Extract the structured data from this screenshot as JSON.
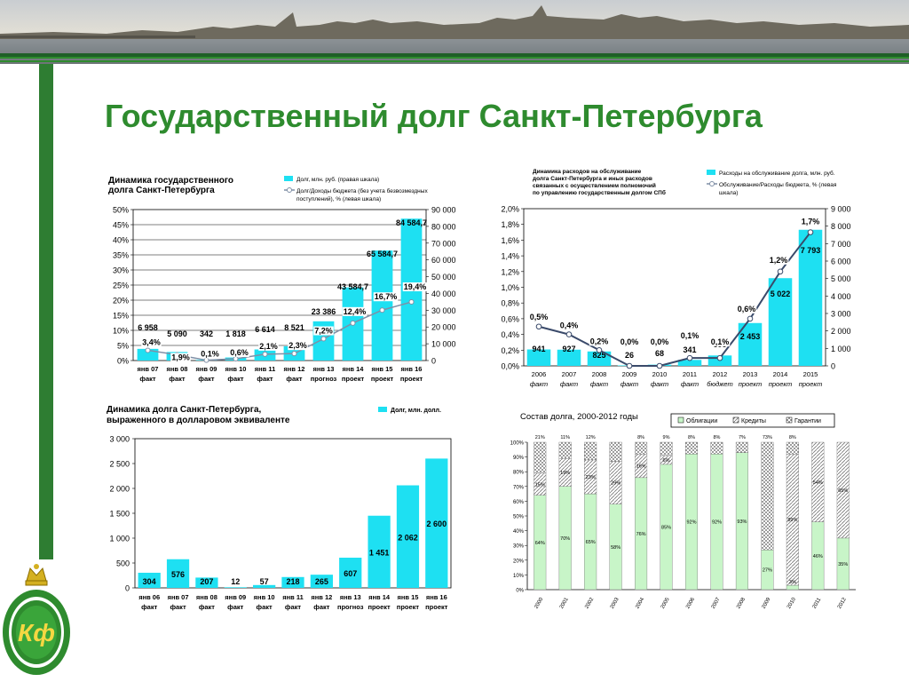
{
  "slide": {
    "title": "Государственный долг Санкт-Петербурга"
  },
  "colors": {
    "bar": "#1ee0f2",
    "line": "#7f8fa6",
    "accent_green": "#2e8b2e",
    "sidebar_green": "#2e7d32",
    "bonds": "#c8f5c8",
    "credits": "#d9d9d9",
    "guarantees": "#f0f0f0"
  },
  "logo": {
    "letters": "Кф",
    "icon": "crown-laurel-emblem-icon"
  },
  "chart_data": [
    {
      "id": "chart1",
      "type": "bar",
      "title_lines": [
        "Динамика государственного",
        "долга Санкт-Петербурга"
      ],
      "legend": [
        {
          "label": "Долг, млн. руб. (правая шкала)"
        },
        {
          "label_lines": [
            "Долг/Доходы бюджета (без учета безвозмездных",
            "поступлений),              % (левая шкала)"
          ]
        }
      ],
      "categories": [
        [
          "янв 07",
          "факт"
        ],
        [
          "янв 08",
          "факт"
        ],
        [
          "янв 09",
          "факт"
        ],
        [
          "янв 10",
          "факт"
        ],
        [
          "янв 11",
          "факт"
        ],
        [
          "янв 12",
          "факт"
        ],
        [
          "янв 13",
          "прогноз"
        ],
        [
          "янв 14",
          "проект"
        ],
        [
          "янв 15",
          "проект"
        ],
        [
          "янв 16",
          "проект"
        ]
      ],
      "series": [
        {
          "name": "Долг, млн. руб.",
          "type": "bar",
          "axis": "right",
          "values": [
            6958,
            5090,
            342,
            1818,
            6614,
            8521,
            23386,
            43584.7,
            65584.7,
            84584.7
          ],
          "labels": [
            "6 958",
            "5 090",
            "342",
            "1 818",
            "6 614",
            "8 521",
            "23 386",
            "43 584,7",
            "65 584,7",
            "84 584,7"
          ]
        },
        {
          "name": "Долг/Доходы бюджета, %",
          "type": "line",
          "axis": "left",
          "values": [
            3.4,
            1.9,
            0.1,
            0.6,
            2.1,
            2.3,
            7.2,
            12.4,
            16.7,
            19.4
          ],
          "labels": [
            "3,4%",
            "1,9%",
            "0,1%",
            "0,6%",
            "2,1%",
            "2,3%",
            "7,2%",
            "12,4%",
            "16,7%",
            "19,4%"
          ]
        }
      ],
      "y_left": {
        "min": 0,
        "max": 50,
        "ticks": [
          "0%",
          "5%",
          "10%",
          "15%",
          "20%",
          "25%",
          "30%",
          "35%",
          "40%",
          "45%",
          "50%"
        ]
      },
      "y_right": {
        "min": 0,
        "max": 90000,
        "ticks": [
          "0",
          "10 000",
          "20 000",
          "30 000",
          "40 000",
          "50 000",
          "60 000",
          "70 000",
          "80 000",
          "90 000"
        ]
      },
      "grid": true
    },
    {
      "id": "chart2",
      "type": "bar",
      "title_lines": [
        "Динамика расходов на обслуживание",
        "долга Санкт-Петербурга и иных расходов",
        "связанных с осуществлением полномочий",
        "по управлению государственным долгом СПб"
      ],
      "legend": [
        {
          "label": "Расходы на обслуживание долга, млн. руб."
        },
        {
          "label_lines": [
            "Обслуживание/Расходы бюджета, % (левая",
            "шкала)"
          ]
        }
      ],
      "categories": [
        [
          "2006",
          "факт"
        ],
        [
          "2007",
          "факт"
        ],
        [
          "2008",
          "факт"
        ],
        [
          "2009",
          "факт"
        ],
        [
          "2010",
          "факт"
        ],
        [
          "2011",
          "факт"
        ],
        [
          "2012",
          "бюджет"
        ],
        [
          "2013",
          "проект"
        ],
        [
          "2014",
          "проект"
        ],
        [
          "2015",
          "проект"
        ]
      ],
      "series": [
        {
          "name": "Расходы на обслуживание долга, млн. руб.",
          "type": "bar",
          "axis": "right",
          "values": [
            941,
            927,
            825,
            26,
            68,
            341,
            595,
            2453,
            5022,
            7793
          ],
          "labels": [
            "941",
            "927",
            "825",
            "26",
            "68",
            "341",
            "595",
            "2 453",
            "5 022",
            "7 793"
          ]
        },
        {
          "name": "Обслуживание/Расходы бюджета, %",
          "type": "line",
          "axis": "left",
          "values": [
            0.5,
            0.4,
            0.2,
            0.0,
            0.0,
            0.1,
            0.1,
            0.6,
            1.2,
            1.7
          ],
          "labels": [
            "0,5%",
            "0,4%",
            "0,2%",
            "0,0%",
            "0,0%",
            "0,1%",
            "0,1%",
            "0,6%",
            "1,2%",
            "1,7%"
          ]
        }
      ],
      "y_left": {
        "min": 0,
        "max": 2.0,
        "ticks": [
          "0,0%",
          "0,2%",
          "0,4%",
          "0,6%",
          "0,8%",
          "1,0%",
          "1,2%",
          "1,4%",
          "1,6%",
          "1,8%",
          "2,0%"
        ]
      },
      "y_right": {
        "min": 0,
        "max": 9000,
        "ticks": [
          "0",
          "1 000",
          "2 000",
          "3 000",
          "4 000",
          "5 000",
          "6 000",
          "7 000",
          "8 000",
          "9 000"
        ]
      },
      "grid": false
    },
    {
      "id": "chart3",
      "type": "bar",
      "title_lines": [
        "Динамика долга Санкт-Петербурга,",
        "выраженного в долларовом эквиваленте"
      ],
      "legend": [
        {
          "label": "Долг, млн. долл."
        }
      ],
      "categories": [
        [
          "янв 06",
          "факт"
        ],
        [
          "янв 07",
          "факт"
        ],
        [
          "янв 08",
          "факт"
        ],
        [
          "янв 09",
          "факт"
        ],
        [
          "янв 10",
          "факт"
        ],
        [
          "янв 11",
          "факт"
        ],
        [
          "янв 12",
          "факт"
        ],
        [
          "янв 13",
          "прогноз"
        ],
        [
          "янв 14",
          "проект"
        ],
        [
          "янв 15",
          "проект"
        ],
        [
          "янв 16",
          "проект"
        ]
      ],
      "series": [
        {
          "name": "Долг, млн. долл.",
          "type": "bar",
          "values": [
            304,
            576,
            207,
            12,
            57,
            218,
            265,
            607,
            1451,
            2062,
            2600
          ],
          "labels": [
            "304",
            "576",
            "207",
            "12",
            "57",
            "218",
            "265",
            "607",
            "1 451",
            "2 062",
            "2 600"
          ]
        }
      ],
      "y": {
        "min": 0,
        "max": 3000,
        "ticks": [
          "0",
          "500",
          "1 000",
          "1 500",
          "2 000",
          "2 500",
          "3 000"
        ]
      },
      "grid": false
    },
    {
      "id": "chart4",
      "type": "bar",
      "stacked": true,
      "title": "Состав долга, 2000-2012 годы",
      "legend": [
        {
          "label": "Облигации"
        },
        {
          "label": "Кредиты"
        },
        {
          "label": "Гарантии"
        }
      ],
      "categories": [
        "2000",
        "2001",
        "2002",
        "2003",
        "2004",
        "2005",
        "2006",
        "2007",
        "2008",
        "2009",
        "2010",
        "2011",
        "2012"
      ],
      "series": [
        {
          "name": "Облигации",
          "values": [
            64,
            70,
            65,
            58,
            76,
            85,
            92,
            92,
            93,
            27,
            3,
            46,
            35
          ],
          "labels": [
            "64%",
            "70%",
            "65%",
            "58%",
            "76%",
            "85%",
            "92%",
            "92%",
            "93%",
            "27%",
            "3%",
            "46%",
            "35%"
          ]
        },
        {
          "name": "Кредиты",
          "values": [
            15,
            19,
            23,
            29,
            16,
            6,
            0,
            0,
            0,
            0,
            89,
            54,
            65
          ],
          "labels": [
            "15%",
            "19%",
            "23%",
            "29%",
            "16%",
            "6%",
            "",
            "",
            "",
            "",
            "89%",
            "54%",
            "65%"
          ]
        },
        {
          "name": "Гарантии",
          "values": [
            21,
            11,
            12,
            13,
            8,
            9,
            8,
            8,
            7,
            73,
            8,
            0,
            0
          ],
          "labels": [
            "21%",
            "11%",
            "12%",
            "",
            "8%",
            "9%",
            "8%",
            "8%",
            "7%",
            "73%",
            "8%",
            "",
            ""
          ]
        }
      ],
      "y": {
        "min": 0,
        "max": 100,
        "ticks": [
          "0%",
          "10%",
          "20%",
          "30%",
          "40%",
          "50%",
          "60%",
          "70%",
          "80%",
          "90%",
          "100%"
        ]
      },
      "grid": false
    }
  ]
}
